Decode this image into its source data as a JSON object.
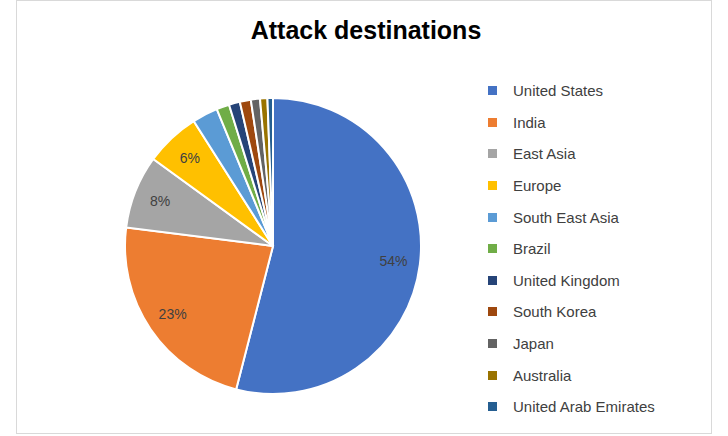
{
  "chart_data": {
    "type": "pie",
    "title": "Attack destinations",
    "categories": [
      "United States",
      "India",
      "East Asia",
      "Europe",
      "South East Asia",
      "Brazil",
      "United Kingdom",
      "South Korea",
      "Japan",
      "Australia",
      "United Arab Emirates"
    ],
    "values": [
      54,
      23,
      8,
      6,
      2.8,
      1.4,
      1.2,
      1.2,
      1,
      0.8,
      0.6
    ],
    "value_labels": [
      "54%",
      "23%",
      "8%",
      "6%",
      null,
      null,
      null,
      null,
      null,
      null,
      null
    ],
    "colors": [
      "#4472c4",
      "#ed7d31",
      "#a5a5a5",
      "#ffc000",
      "#5b9bd5",
      "#70ad47",
      "#264478",
      "#9e480e",
      "#636363",
      "#997300",
      "#255e91"
    ],
    "data_labels": true,
    "legend": "right"
  }
}
